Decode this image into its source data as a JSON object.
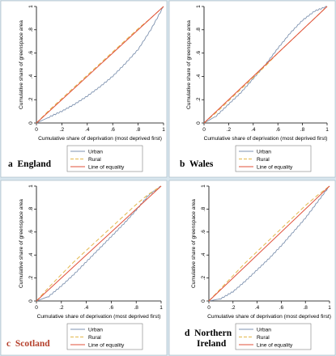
{
  "chart_data": [
    {
      "type": "line",
      "panel": "a",
      "label": "England",
      "xlabel": "Cumulative share of deprivation (most deprived first)",
      "ylabel": "Cumulative share of greenspace area",
      "xlim": [
        0,
        1
      ],
      "ylim": [
        0,
        1
      ],
      "xticks": [
        "0",
        ".2",
        ".4",
        ".6",
        ".8",
        "1"
      ],
      "yticks": [
        "0",
        ".2",
        ".4",
        ".6",
        ".8",
        "1"
      ],
      "legend": [
        "Urban",
        "Rural",
        "Line of equality"
      ],
      "legend_position": "bottom",
      "series": [
        {
          "name": "Urban",
          "x": [
            0,
            0.1,
            0.2,
            0.3,
            0.4,
            0.5,
            0.6,
            0.7,
            0.8,
            0.9,
            1
          ],
          "y": [
            0,
            0.05,
            0.1,
            0.16,
            0.23,
            0.31,
            0.4,
            0.51,
            0.63,
            0.8,
            1
          ]
        },
        {
          "name": "Rural",
          "x": [
            0,
            0.1,
            0.2,
            0.3,
            0.4,
            0.5,
            0.6,
            0.7,
            0.8,
            0.9,
            1
          ],
          "y": [
            0,
            0.11,
            0.21,
            0.31,
            0.41,
            0.51,
            0.61,
            0.71,
            0.81,
            0.9,
            1
          ]
        },
        {
          "name": "Line of equality",
          "x": [
            0,
            1
          ],
          "y": [
            0,
            1
          ]
        }
      ]
    },
    {
      "type": "line",
      "panel": "b",
      "label": "Wales",
      "xlabel": "Cumulative share of deprivation (most deprived first)",
      "ylabel": "Cumulative share of greenspace area",
      "xlim": [
        0,
        1
      ],
      "ylim": [
        0,
        1
      ],
      "xticks": [
        "0",
        ".2",
        ".4",
        ".6",
        ".8",
        "1"
      ],
      "yticks": [
        "0",
        ".2",
        ".4",
        ".6",
        ".8",
        "1"
      ],
      "legend": [
        "Urban",
        "Rural",
        "Line of equality"
      ],
      "legend_position": "bottom",
      "series": [
        {
          "name": "Urban",
          "x": [
            0,
            0.1,
            0.2,
            0.3,
            0.4,
            0.5,
            0.6,
            0.7,
            0.8,
            0.9,
            1
          ],
          "y": [
            0,
            0.06,
            0.16,
            0.26,
            0.38,
            0.5,
            0.64,
            0.77,
            0.88,
            0.96,
            1
          ]
        },
        {
          "name": "Rural",
          "x": [
            0,
            0.1,
            0.2,
            0.3,
            0.4,
            0.5,
            0.6,
            0.7,
            0.8,
            0.9,
            1
          ],
          "y": [
            0,
            0.09,
            0.19,
            0.29,
            0.39,
            0.49,
            0.6,
            0.7,
            0.8,
            0.9,
            1
          ]
        },
        {
          "name": "Line of equality",
          "x": [
            0,
            1
          ],
          "y": [
            0,
            1
          ]
        }
      ]
    },
    {
      "type": "line",
      "panel": "c",
      "label": "Scotland",
      "xlabel": "Cumulative share of deprivation (most deprived first)",
      "ylabel": "Cumulative share of greenspace area",
      "xlim": [
        0,
        1
      ],
      "ylim": [
        0,
        1
      ],
      "xticks": [
        "0",
        ".2",
        ".4",
        ".6",
        ".8",
        "1"
      ],
      "yticks": [
        "0",
        ".2",
        ".4",
        ".6",
        ".8",
        "1"
      ],
      "legend": [
        "Urban",
        "Rural",
        "Line of equality"
      ],
      "legend_position": "bottom",
      "series": [
        {
          "name": "Urban",
          "x": [
            0,
            0.1,
            0.2,
            0.3,
            0.4,
            0.5,
            0.6,
            0.7,
            0.8,
            0.9,
            1
          ],
          "y": [
            0,
            0.04,
            0.13,
            0.23,
            0.34,
            0.45,
            0.56,
            0.67,
            0.79,
            0.92,
            1
          ]
        },
        {
          "name": "Rural",
          "x": [
            0,
            0.1,
            0.2,
            0.3,
            0.4,
            0.5,
            0.6,
            0.7,
            0.8,
            0.9,
            1
          ],
          "y": [
            0,
            0.12,
            0.23,
            0.34,
            0.44,
            0.54,
            0.64,
            0.74,
            0.84,
            0.93,
            1
          ]
        },
        {
          "name": "Line of equality",
          "x": [
            0,
            1
          ],
          "y": [
            0,
            1
          ]
        }
      ]
    },
    {
      "type": "line",
      "panel": "d",
      "label": "Northern Ireland",
      "xlabel": "Cumulative share of deprivation (most deprived first)",
      "ylabel": "Cumulative share of greenspace area",
      "xlim": [
        0,
        1
      ],
      "ylim": [
        0,
        1
      ],
      "xticks": [
        "0",
        ".2",
        ".4",
        ".6",
        ".8",
        "1"
      ],
      "yticks": [
        "0",
        ".2",
        ".4",
        ".6",
        ".8",
        "1"
      ],
      "legend": [
        "Urban",
        "Rural",
        "Line of equality"
      ],
      "legend_position": "bottom",
      "series": [
        {
          "name": "Urban",
          "x": [
            0,
            0.1,
            0.2,
            0.3,
            0.4,
            0.5,
            0.6,
            0.7,
            0.8,
            0.9,
            1
          ],
          "y": [
            0,
            0.02,
            0.08,
            0.17,
            0.27,
            0.37,
            0.48,
            0.6,
            0.72,
            0.86,
            1
          ]
        },
        {
          "name": "Rural",
          "x": [
            0,
            0.1,
            0.2,
            0.3,
            0.4,
            0.5,
            0.6,
            0.7,
            0.8,
            0.9,
            1
          ],
          "y": [
            0,
            0.11,
            0.22,
            0.33,
            0.43,
            0.53,
            0.63,
            0.73,
            0.83,
            0.92,
            1
          ]
        },
        {
          "name": "Line of equality",
          "x": [
            0,
            1
          ],
          "y": [
            0,
            1
          ]
        }
      ]
    }
  ],
  "colors": {
    "urban": "#7f93b0",
    "rural": "#e3b74a",
    "equality": "#e0503a",
    "plot_bg": "#ffffff",
    "page_bg": "#d8e6ee"
  },
  "panel_labels": [
    {
      "letter": "a",
      "name": "England"
    },
    {
      "letter": "b",
      "name": "Wales"
    },
    {
      "letter": "c",
      "name": "Scotland"
    },
    {
      "letter": "d",
      "name": "Northern",
      "name2": "Ireland"
    }
  ]
}
